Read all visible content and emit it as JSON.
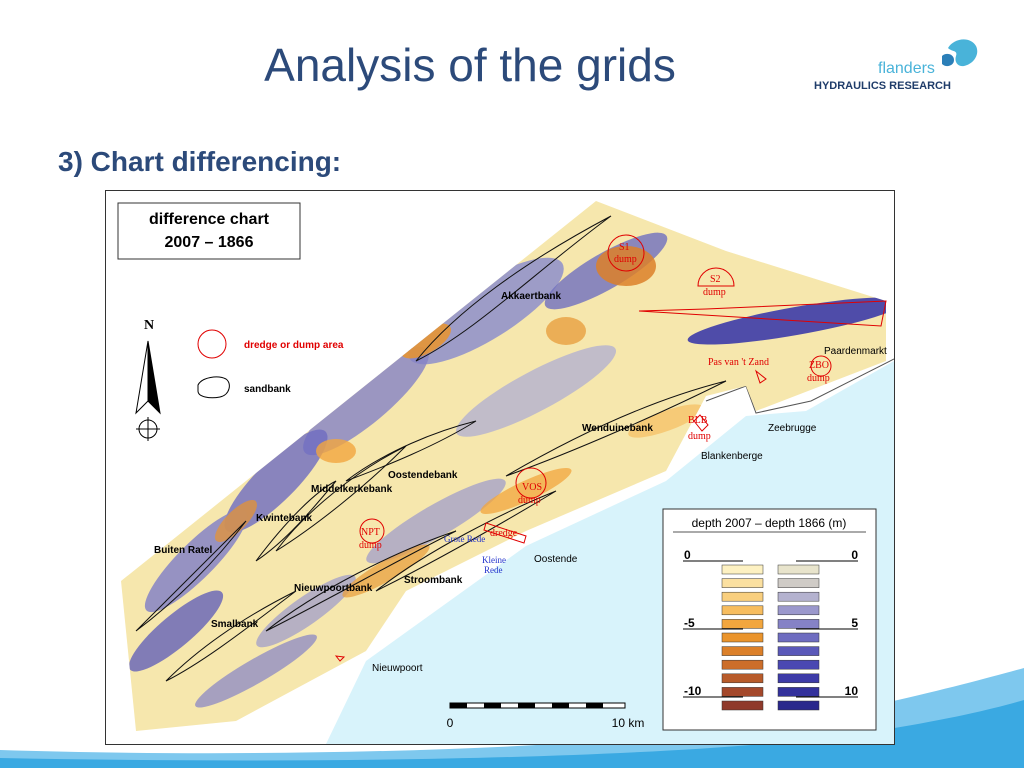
{
  "slide": {
    "title": "Analysis of the grids",
    "subtitle": "3) Chart differencing:"
  },
  "logo": {
    "word": "flanders",
    "org": "HYDRAULICS RESEARCH"
  },
  "map": {
    "chart_title_line1": "difference chart",
    "chart_title_line2": "2007 – 1866",
    "north_label": "N",
    "legend_dump": "dredge or dump area",
    "legend_sandbank": "sandbank",
    "scale_start": "0",
    "scale_end": "10 km",
    "sandbanks": {
      "akkaertbank": "Akkaertbank",
      "wenduinebank": "Wenduinebank",
      "oostendebank": "Oostendebank",
      "middelkerkebank": "Middelkerkebank",
      "kwintebank": "Kwintebank",
      "buiten_ratel": "Buiten Ratel",
      "nieuwpoortbank": "Nieuwpoortbank",
      "stroombank": "Stroombank",
      "smalbank": "Smalbank"
    },
    "places": {
      "paardenmarkt": "Paardenmarkt",
      "zeebrugge": "Zeebrugge",
      "blankenberge": "Blankenberge",
      "oostende": "Oostende",
      "nieuwpoort": "Nieuwpoort"
    },
    "areas": {
      "s1": "S1",
      "s1_dump": "dump",
      "s2": "S2",
      "s2_dump": "dump",
      "pas_van_t_zand": "Pas van 't Zand",
      "zbo": "ZBO",
      "zbo_dump": "dump",
      "blb": "BLB",
      "blb_dump": "dump",
      "vos": "VOS",
      "vos_dump": "dump",
      "npt": "NPT",
      "npt_dump": "dump",
      "dredge": "dredge",
      "grote_rede": "Grote Rede",
      "kleine_rede_1": "Kleine",
      "kleine_rede_2": "Rede"
    },
    "depth_legend": {
      "title": "depth 2007 – depth 1866 (m)",
      "left_ticks": [
        "0",
        "-5",
        "-10"
      ],
      "right_ticks": [
        "0",
        "5",
        "10"
      ],
      "erosion_colors": [
        "#fdf1c2",
        "#fbe0a0",
        "#f9cf7e",
        "#f7bd5f",
        "#f2a63e",
        "#ea942c",
        "#dc8029",
        "#cc6e2a",
        "#b85b2a",
        "#a4482b",
        "#8f3a2b"
      ],
      "accretion_colors": [
        "#e8e4cc",
        "#cfcbc6",
        "#b4b2cf",
        "#9b98cc",
        "#8582c6",
        "#6e6cc0",
        "#5a58b9",
        "#4a48b2",
        "#3d3ba8",
        "#33319c",
        "#2a288c"
      ]
    }
  }
}
